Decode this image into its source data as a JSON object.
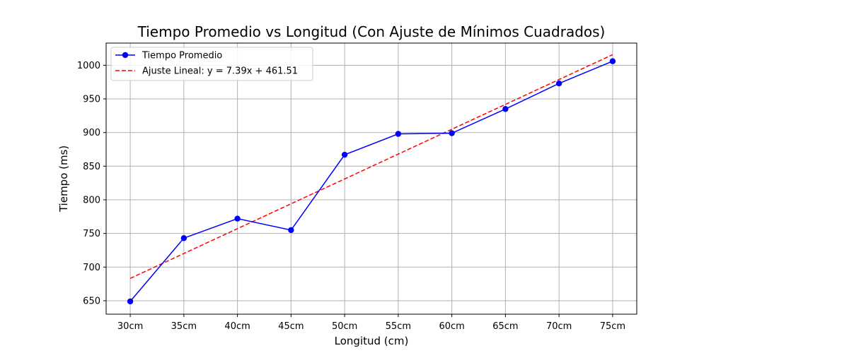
{
  "chart_data": {
    "type": "line",
    "title": "Tiempo Promedio vs Longitud (Con Ajuste de Mínimos Cuadrados)",
    "xlabel": "Longitud (cm)",
    "ylabel": "Tiempo (ms)",
    "categories": [
      "30cm",
      "35cm",
      "40cm",
      "45cm",
      "50cm",
      "55cm",
      "60cm",
      "65cm",
      "70cm",
      "75cm"
    ],
    "x": [
      30,
      35,
      40,
      45,
      50,
      55,
      60,
      65,
      70,
      75
    ],
    "series": [
      {
        "name": "Tiempo Promedio",
        "style": "solid-with-markers",
        "color": "#0000ff",
        "values": [
          649,
          743,
          772,
          755,
          867,
          898,
          899,
          935,
          973,
          1006
        ]
      },
      {
        "name": "Ajuste Lineal: y = 7.39x + 461.51",
        "style": "dashed",
        "color": "#ff0000",
        "fit": {
          "slope": 7.39,
          "intercept": 461.51
        }
      }
    ],
    "yticks": [
      650,
      700,
      750,
      800,
      850,
      900,
      950,
      1000
    ],
    "ylim": [
      630,
      1033
    ],
    "grid": true,
    "legend_position": "top-left"
  }
}
